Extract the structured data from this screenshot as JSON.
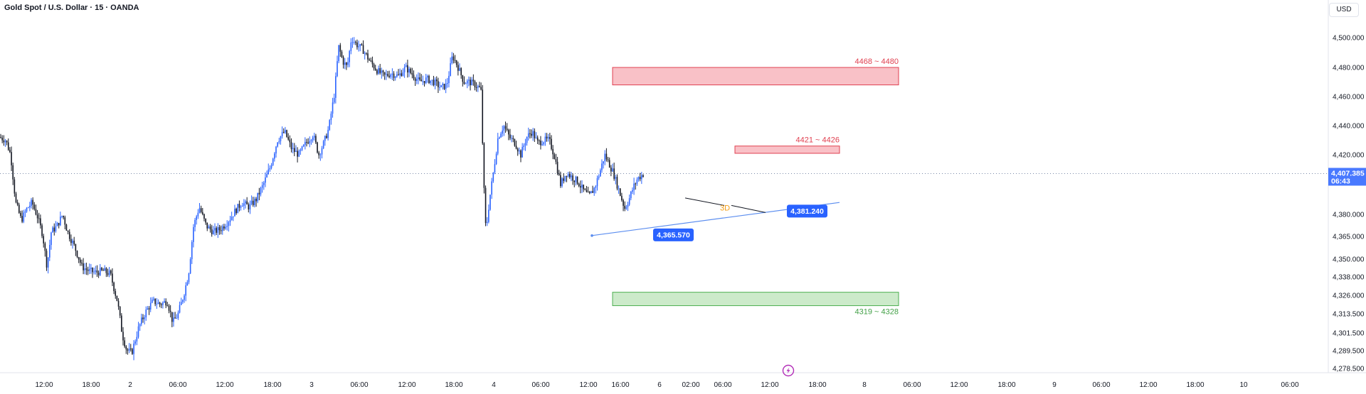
{
  "header": {
    "symbol_title": "Gold Spot / U.S. Dollar · 15 · OANDA",
    "currency": "USD"
  },
  "colors": {
    "accent": "#2962ff",
    "up_candle": "#2962ff",
    "down_candle": "#131722",
    "resistance_fill": "#f8b6bd",
    "resistance_border": "#e04050",
    "resistance_text": "#e04050",
    "support_fill": "#c3e6c1",
    "support_border": "#4caf50",
    "support_text": "#43a047",
    "trendline": "#5b8def"
  },
  "chart_data": {
    "type": "candlestick",
    "symbol": "Gold Spot / U.S. Dollar",
    "interval": "15",
    "source": "OANDA",
    "y_axis": {
      "ticks": [
        "4,500.000",
        "4,480.000",
        "4,460.000",
        "4,440.000",
        "4,420.000",
        "4,380.000",
        "4,365.000",
        "4,350.000",
        "4,338.000",
        "4,326.000",
        "4,313.500",
        "4,301.500",
        "4,289.500",
        "4,278.500"
      ],
      "tick_values": [
        4500,
        4480,
        4460,
        4440,
        4420,
        4380,
        4365,
        4350,
        4338,
        4326,
        4313.5,
        4301.5,
        4289.5,
        4278.5
      ],
      "scale": "log-like (non-linear spacing as printed)"
    },
    "x_axis": {
      "ticks": [
        "12:00",
        "18:00",
        "2",
        "06:00",
        "12:00",
        "18:00",
        "3",
        "06:00",
        "12:00",
        "18:00",
        "4",
        "06:00",
        "12:00",
        "16:00",
        "6",
        "02:00",
        "06:00",
        "12:00",
        "18:00",
        "8",
        "06:00",
        "12:00",
        "18:00",
        "9",
        "06:00",
        "12:00",
        "18:00",
        "10",
        "06:00"
      ]
    },
    "current_price": {
      "label": "4,407.385",
      "countdown": "06:43",
      "value": 4407.385
    },
    "zones": [
      {
        "label": "4468 ~ 4480",
        "low": 4468,
        "high": 4480,
        "kind": "resistance"
      },
      {
        "label": "4421 ~ 4426",
        "low": 4421,
        "high": 4426,
        "kind": "resistance"
      },
      {
        "label": "4319 ~ 4328",
        "low": 4319,
        "high": 4328,
        "kind": "support"
      }
    ],
    "annotations": [
      {
        "label": "4,365.570",
        "value": 4365.57
      },
      {
        "label": "4,381.240",
        "value": 4381.24
      },
      {
        "label": "3D"
      }
    ],
    "price_path": [
      {
        "t": 0,
        "p": 4432
      },
      {
        "t": 8,
        "p": 4430
      },
      {
        "t": 15,
        "p": 4420
      },
      {
        "t": 22,
        "p": 4388
      },
      {
        "t": 30,
        "p": 4376
      },
      {
        "t": 38,
        "p": 4384
      },
      {
        "t": 45,
        "p": 4388
      },
      {
        "t": 53,
        "p": 4378
      },
      {
        "t": 60,
        "p": 4366
      },
      {
        "t": 66,
        "p": 4345
      },
      {
        "t": 72,
        "p": 4368
      },
      {
        "t": 80,
        "p": 4372
      },
      {
        "t": 88,
        "p": 4380
      },
      {
        "t": 95,
        "p": 4368
      },
      {
        "t": 105,
        "p": 4358
      },
      {
        "t": 115,
        "p": 4345
      },
      {
        "t": 125,
        "p": 4342
      },
      {
        "t": 135,
        "p": 4341
      },
      {
        "t": 145,
        "p": 4342
      },
      {
        "t": 155,
        "p": 4340
      },
      {
        "t": 165,
        "p": 4322
      },
      {
        "t": 172,
        "p": 4300
      },
      {
        "t": 178,
        "p": 4290
      },
      {
        "t": 185,
        "p": 4288
      },
      {
        "t": 195,
        "p": 4305
      },
      {
        "t": 205,
        "p": 4315
      },
      {
        "t": 215,
        "p": 4322
      },
      {
        "t": 225,
        "p": 4320
      },
      {
        "t": 235,
        "p": 4322
      },
      {
        "t": 243,
        "p": 4308
      },
      {
        "t": 250,
        "p": 4313
      },
      {
        "t": 258,
        "p": 4326
      },
      {
        "t": 265,
        "p": 4340
      },
      {
        "t": 272,
        "p": 4372
      },
      {
        "t": 280,
        "p": 4385
      },
      {
        "t": 290,
        "p": 4372
      },
      {
        "t": 300,
        "p": 4368
      },
      {
        "t": 310,
        "p": 4370
      },
      {
        "t": 320,
        "p": 4375
      },
      {
        "t": 330,
        "p": 4382
      },
      {
        "t": 340,
        "p": 4388
      },
      {
        "t": 350,
        "p": 4385
      },
      {
        "t": 360,
        "p": 4390
      },
      {
        "t": 370,
        "p": 4400
      },
      {
        "t": 380,
        "p": 4412
      },
      {
        "t": 390,
        "p": 4430
      },
      {
        "t": 400,
        "p": 4436
      },
      {
        "t": 410,
        "p": 4424
      },
      {
        "t": 420,
        "p": 4420
      },
      {
        "t": 430,
        "p": 4428
      },
      {
        "t": 440,
        "p": 4434
      },
      {
        "t": 448,
        "p": 4420
      },
      {
        "t": 455,
        "p": 4428
      },
      {
        "t": 462,
        "p": 4438
      },
      {
        "t": 470,
        "p": 4462
      },
      {
        "t": 476,
        "p": 4494
      },
      {
        "t": 482,
        "p": 4484
      },
      {
        "t": 488,
        "p": 4480
      },
      {
        "t": 494,
        "p": 4500
      },
      {
        "t": 500,
        "p": 4496
      },
      {
        "t": 510,
        "p": 4492
      },
      {
        "t": 520,
        "p": 4484
      },
      {
        "t": 530,
        "p": 4478
      },
      {
        "t": 540,
        "p": 4474
      },
      {
        "t": 550,
        "p": 4476
      },
      {
        "t": 560,
        "p": 4474
      },
      {
        "t": 570,
        "p": 4480
      },
      {
        "t": 580,
        "p": 4475
      },
      {
        "t": 590,
        "p": 4470
      },
      {
        "t": 600,
        "p": 4472
      },
      {
        "t": 610,
        "p": 4470
      },
      {
        "t": 620,
        "p": 4466
      },
      {
        "t": 628,
        "p": 4468
      },
      {
        "t": 636,
        "p": 4488
      },
      {
        "t": 644,
        "p": 4480
      },
      {
        "t": 652,
        "p": 4470
      },
      {
        "t": 660,
        "p": 4470
      },
      {
        "t": 668,
        "p": 4468
      },
      {
        "t": 676,
        "p": 4465
      },
      {
        "t": 680,
        "p": 4400
      },
      {
        "t": 683,
        "p": 4368
      },
      {
        "t": 688,
        "p": 4390
      },
      {
        "t": 694,
        "p": 4410
      },
      {
        "t": 700,
        "p": 4432
      },
      {
        "t": 708,
        "p": 4440
      },
      {
        "t": 716,
        "p": 4432
      },
      {
        "t": 724,
        "p": 4428
      },
      {
        "t": 732,
        "p": 4420
      },
      {
        "t": 740,
        "p": 4432
      },
      {
        "t": 748,
        "p": 4436
      },
      {
        "t": 756,
        "p": 4428
      },
      {
        "t": 764,
        "p": 4430
      },
      {
        "t": 772,
        "p": 4430
      },
      {
        "t": 780,
        "p": 4418
      },
      {
        "t": 788,
        "p": 4400
      },
      {
        "t": 796,
        "p": 4408
      },
      {
        "t": 804,
        "p": 4405
      },
      {
        "t": 812,
        "p": 4402
      },
      {
        "t": 820,
        "p": 4396
      },
      {
        "t": 828,
        "p": 4392
      },
      {
        "t": 836,
        "p": 4398
      },
      {
        "t": 844,
        "p": 4410
      },
      {
        "t": 850,
        "p": 4420
      },
      {
        "t": 856,
        "p": 4414
      },
      {
        "t": 862,
        "p": 4408
      },
      {
        "t": 870,
        "p": 4396
      },
      {
        "t": 878,
        "p": 4384
      },
      {
        "t": 884,
        "p": 4390
      },
      {
        "t": 890,
        "p": 4398
      },
      {
        "t": 896,
        "p": 4404
      },
      {
        "t": 904,
        "p": 4407
      }
    ]
  }
}
